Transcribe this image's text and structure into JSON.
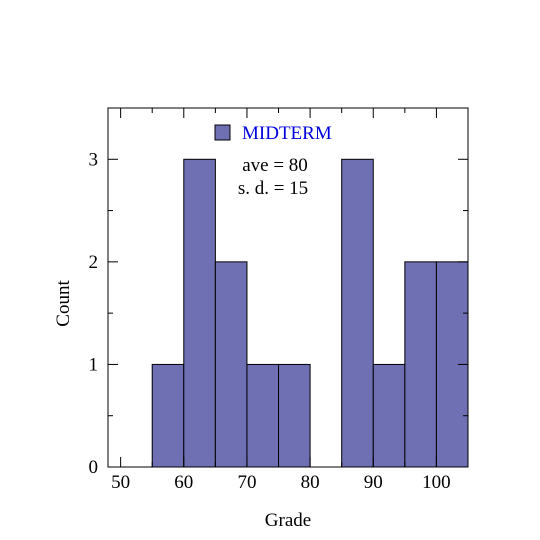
{
  "chart_data": {
    "type": "bar",
    "bin_width": 5,
    "x": [
      57.5,
      62.5,
      67.5,
      72.5,
      77.5,
      82.5,
      87.5,
      92.5,
      97.5,
      102.5
    ],
    "values": [
      1,
      3,
      2,
      1,
      1,
      0,
      3,
      1,
      2,
      2
    ],
    "series": [
      {
        "name": "MIDTERM",
        "values": [
          1,
          3,
          2,
          1,
          1,
          0,
          3,
          1,
          2,
          2
        ]
      }
    ],
    "xlabel": "Grade",
    "ylabel": "Count",
    "xlim": [
      48,
      105
    ],
    "ylim": [
      0,
      3.5
    ],
    "x_ticks": [
      50,
      60,
      70,
      80,
      90,
      100
    ],
    "x_tick_labels": [
      "50",
      "60",
      "70",
      "80",
      "90",
      "100"
    ],
    "y_ticks": [
      0,
      1,
      2,
      3
    ],
    "y_tick_labels": [
      "0",
      "1",
      "2",
      "3"
    ],
    "annotations": [
      "ave = 80",
      "s. d. = 15"
    ],
    "legend_position": "top-center",
    "grid": false,
    "colors": {
      "bar_fill": "#6f6fb4",
      "bar_stroke": "#000000",
      "legend_text": "#0000dd",
      "axis": "#000000"
    }
  }
}
